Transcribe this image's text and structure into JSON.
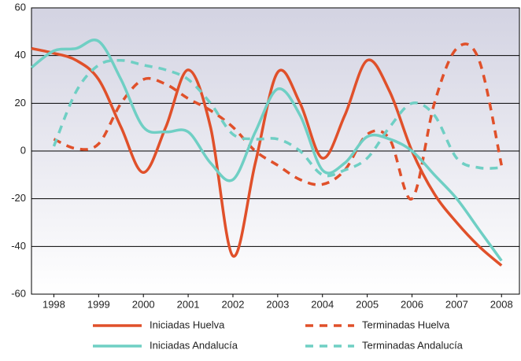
{
  "chart_data": {
    "type": "line",
    "x": [
      1997.5,
      1998,
      1998.5,
      1999,
      1999.5,
      2000,
      2000.5,
      2001,
      2001.5,
      2002,
      2002.5,
      2003,
      2003.5,
      2004,
      2004.5,
      2005,
      2005.5,
      2006,
      2006.5,
      2007,
      2007.5,
      2008
    ],
    "series": [
      {
        "name": "Iniciadas Huelva",
        "color": "#e0502a",
        "dash": false,
        "values": [
          43,
          41,
          38,
          30,
          10,
          -9,
          10,
          34,
          10,
          -44,
          -5,
          33,
          20,
          -3,
          15,
          38,
          25,
          0,
          -18,
          -30,
          -40,
          -48
        ]
      },
      {
        "name": "Terminadas Huelva",
        "color": "#e0502a",
        "dash": true,
        "values": [
          null,
          5,
          1,
          3,
          20,
          30,
          28,
          22,
          17,
          10,
          0,
          -6,
          -12,
          -14,
          -8,
          7,
          5,
          -20,
          20,
          43,
          38,
          -6
        ]
      },
      {
        "name": "Iniciadas Andalucía",
        "color": "#6fcfc4",
        "dash": false,
        "values": [
          35,
          42,
          43,
          46,
          30,
          10,
          8,
          8,
          -5,
          -12,
          8,
          26,
          15,
          -8,
          -5,
          6,
          5,
          0,
          -10,
          -20,
          -33,
          -46
        ]
      },
      {
        "name": "Terminadas Andalucía",
        "color": "#6fcfc4",
        "dash": true,
        "values": [
          null,
          2,
          25,
          36,
          38,
          36,
          34,
          30,
          20,
          7,
          5,
          5,
          0,
          -10,
          -8,
          -3,
          10,
          20,
          15,
          -3,
          -7,
          -7
        ]
      }
    ],
    "xlim": [
      1997.5,
      2008.4
    ],
    "xticks": [
      1998,
      1999,
      2000,
      2001,
      2002,
      2003,
      2004,
      2005,
      2006,
      2007,
      2008
    ],
    "ylim": [
      -60,
      60
    ],
    "yticks": [
      -60,
      -40,
      -20,
      0,
      20,
      40,
      60
    ],
    "grid": true,
    "legend": "bottom"
  }
}
